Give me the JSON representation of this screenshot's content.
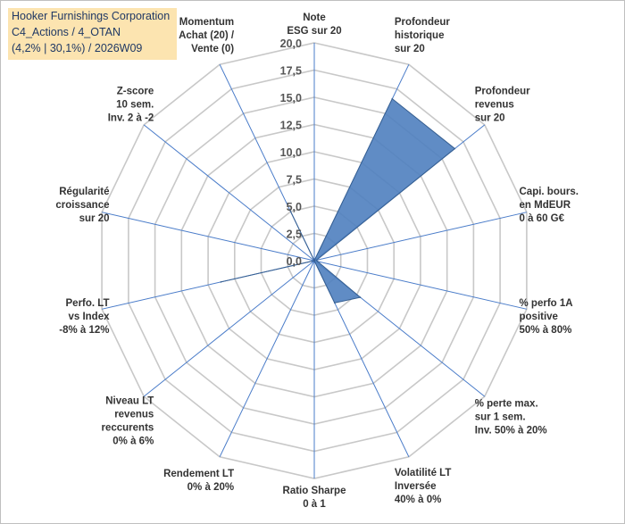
{
  "info": {
    "line1": "Hooker Furnishings Corporation",
    "line2": "C4_Actions / 4_OTAN",
    "line3": "(4,2% | 30,1%) / 2026W09"
  },
  "colors": {
    "fill": "#4f7fbf",
    "stroke": "#365f91",
    "grid": "#c8c8c8",
    "spoke": "#4a7cc9"
  },
  "chart_data": {
    "type": "radar",
    "title": "",
    "rmin": 0,
    "rmax": 20,
    "ticks": [
      "0,0",
      "2,5",
      "5,0",
      "7,5",
      "10,0",
      "12,5",
      "15,0",
      "17,5",
      "20,0"
    ],
    "axes": [
      {
        "lines": [
          "Note",
          "ESG sur 20"
        ],
        "value": 0
      },
      {
        "lines": [
          "Profondeur",
          "historique",
          "sur 20"
        ],
        "value": 16.5
      },
      {
        "lines": [
          "Profondeur",
          "revenus",
          "sur 20"
        ],
        "value": 16.5
      },
      {
        "lines": [
          "Capi. bours.",
          "en MdEUR",
          "0 à 60 G€"
        ],
        "value": 0.2
      },
      {
        "lines": [
          "% perfo 1A",
          "positive",
          "50% à 80%"
        ],
        "value": 0.3
      },
      {
        "lines": [
          "% perte max.",
          "sur 1 sem.",
          "Inv. 50% à 20%"
        ],
        "value": 5.4
      },
      {
        "lines": [
          "Volatilité LT",
          "Inversée",
          "40% à 0%"
        ],
        "value": 4.3
      },
      {
        "lines": [
          "Ratio Sharpe",
          "0 à 1"
        ],
        "value": 0
      },
      {
        "lines": [
          "Rendement LT",
          "0% à 20%"
        ],
        "value": 0
      },
      {
        "lines": [
          "Niveau LT",
          "revenus",
          "reccurents",
          "0% à 6%"
        ],
        "value": 0
      },
      {
        "lines": [
          "Perfo. LT",
          "vs Index",
          "-8% à 12%"
        ],
        "value": 8.8
      },
      {
        "lines": [
          "Régularité",
          "croissance",
          "sur 20"
        ],
        "value": 0
      },
      {
        "lines": [
          "Z-score",
          "10 sem.",
          "Inv. 2 à -2"
        ],
        "value": 0
      },
      {
        "lines": [
          "Momentum",
          "Achat (20) /",
          "Vente (0)"
        ],
        "value": 5.1
      }
    ]
  }
}
